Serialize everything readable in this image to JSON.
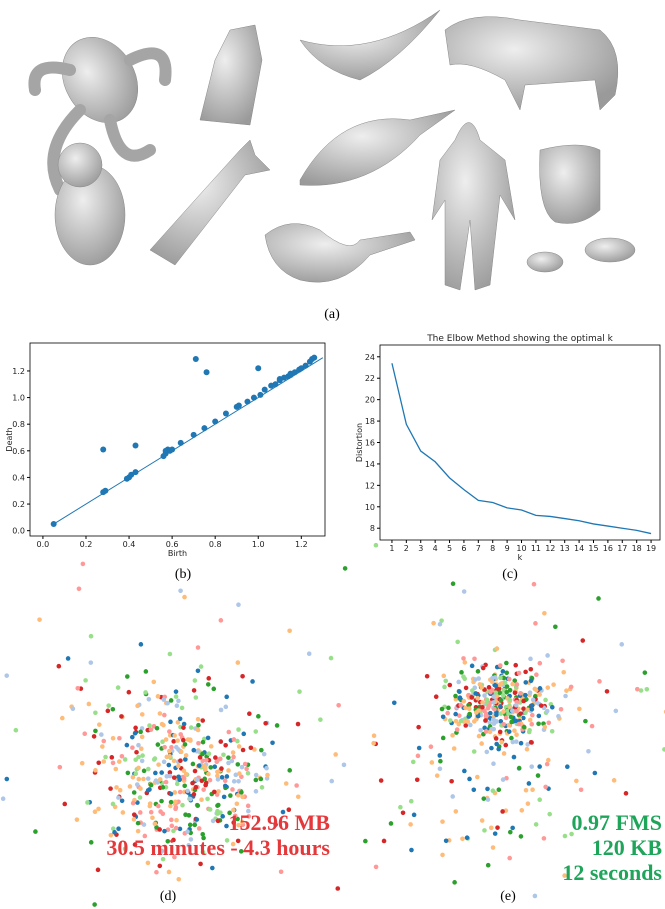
{
  "figure_a": {
    "caption": "(a)"
  },
  "chart_data": [
    {
      "type": "scatter",
      "caption": "(b)",
      "xlabel": "Birth",
      "ylabel": "Death",
      "xlim": [
        -0.06,
        1.31
      ],
      "ylim": [
        -0.04,
        1.41
      ],
      "xticks": [
        {
          "value": 0,
          "label": "0.0"
        },
        0.2,
        0.4,
        0.6,
        0.8,
        {
          "value": 1,
          "label": "1.0"
        },
        1.2
      ],
      "yticks": [
        {
          "value": 0,
          "label": "0.0"
        },
        0.2,
        0.4,
        0.6,
        0.8,
        {
          "value": 1,
          "label": "1.0"
        },
        1.2
      ],
      "color": "#1f77b4",
      "x": [
        0.05,
        0.28,
        0.28,
        0.29,
        0.39,
        0.4,
        0.41,
        0.43,
        0.43,
        0.56,
        0.57,
        0.57,
        0.58,
        0.59,
        0.6,
        0.64,
        0.7,
        0.71,
        0.75,
        0.76,
        0.8,
        0.85,
        0.9,
        0.91,
        0.95,
        0.98,
        1.0,
        1.01,
        1.03,
        1.06,
        1.08,
        1.1,
        1.1,
        1.12,
        1.14,
        1.15,
        1.15,
        1.17,
        1.19,
        1.2,
        1.22,
        1.24,
        1.25,
        1.26
      ],
      "values": [
        0.05,
        0.61,
        0.29,
        0.3,
        0.39,
        0.4,
        0.42,
        0.64,
        0.44,
        0.56,
        0.58,
        0.6,
        0.61,
        0.6,
        0.61,
        0.66,
        0.72,
        1.29,
        0.77,
        1.19,
        0.82,
        0.88,
        0.93,
        0.94,
        0.97,
        1.0,
        1.22,
        1.02,
        1.06,
        1.09,
        1.1,
        1.13,
        1.14,
        1.15,
        1.16,
        1.17,
        1.18,
        1.19,
        1.21,
        1.22,
        1.24,
        1.27,
        1.29,
        1.3
      ],
      "diagonal": [
        0.05,
        1.3
      ]
    },
    {
      "type": "line",
      "caption": "(c)",
      "title": "The Elbow Method showing the optimal k",
      "xlabel": "k",
      "ylabel": "Distortion",
      "color": "#1f77b4",
      "xlim": [
        0.17,
        19.62
      ],
      "ylim": [
        6.9,
        25.1
      ],
      "xticks": [
        1,
        2,
        3,
        4,
        5,
        6,
        7,
        8,
        9,
        10,
        11,
        12,
        13,
        14,
        15,
        16,
        17,
        18,
        19
      ],
      "yticks": [
        8,
        10,
        12,
        14,
        16,
        18,
        20,
        22,
        24
      ],
      "x": [
        1,
        2,
        3,
        4,
        5,
        6,
        7,
        8,
        9,
        10,
        11,
        12,
        13,
        14,
        15,
        16,
        17,
        18,
        19
      ],
      "values": [
        23.4,
        17.7,
        15.2,
        14.2,
        12.7,
        11.6,
        10.6,
        10.4,
        9.9,
        9.7,
        9.2,
        9.1,
        8.9,
        8.7,
        8.4,
        8.2,
        8.0,
        7.8,
        7.5
      ]
    }
  ],
  "embeddings": [
    {
      "caption": "(d)",
      "color": "#e5383b",
      "annotations": [
        "152.96 MB",
        "30.5 minutes - 4.3 hours"
      ]
    },
    {
      "caption": "(e)",
      "color": "#1ea55a",
      "annotations": [
        "0.97 FMS",
        "120 KB",
        "12 seconds"
      ]
    }
  ]
}
